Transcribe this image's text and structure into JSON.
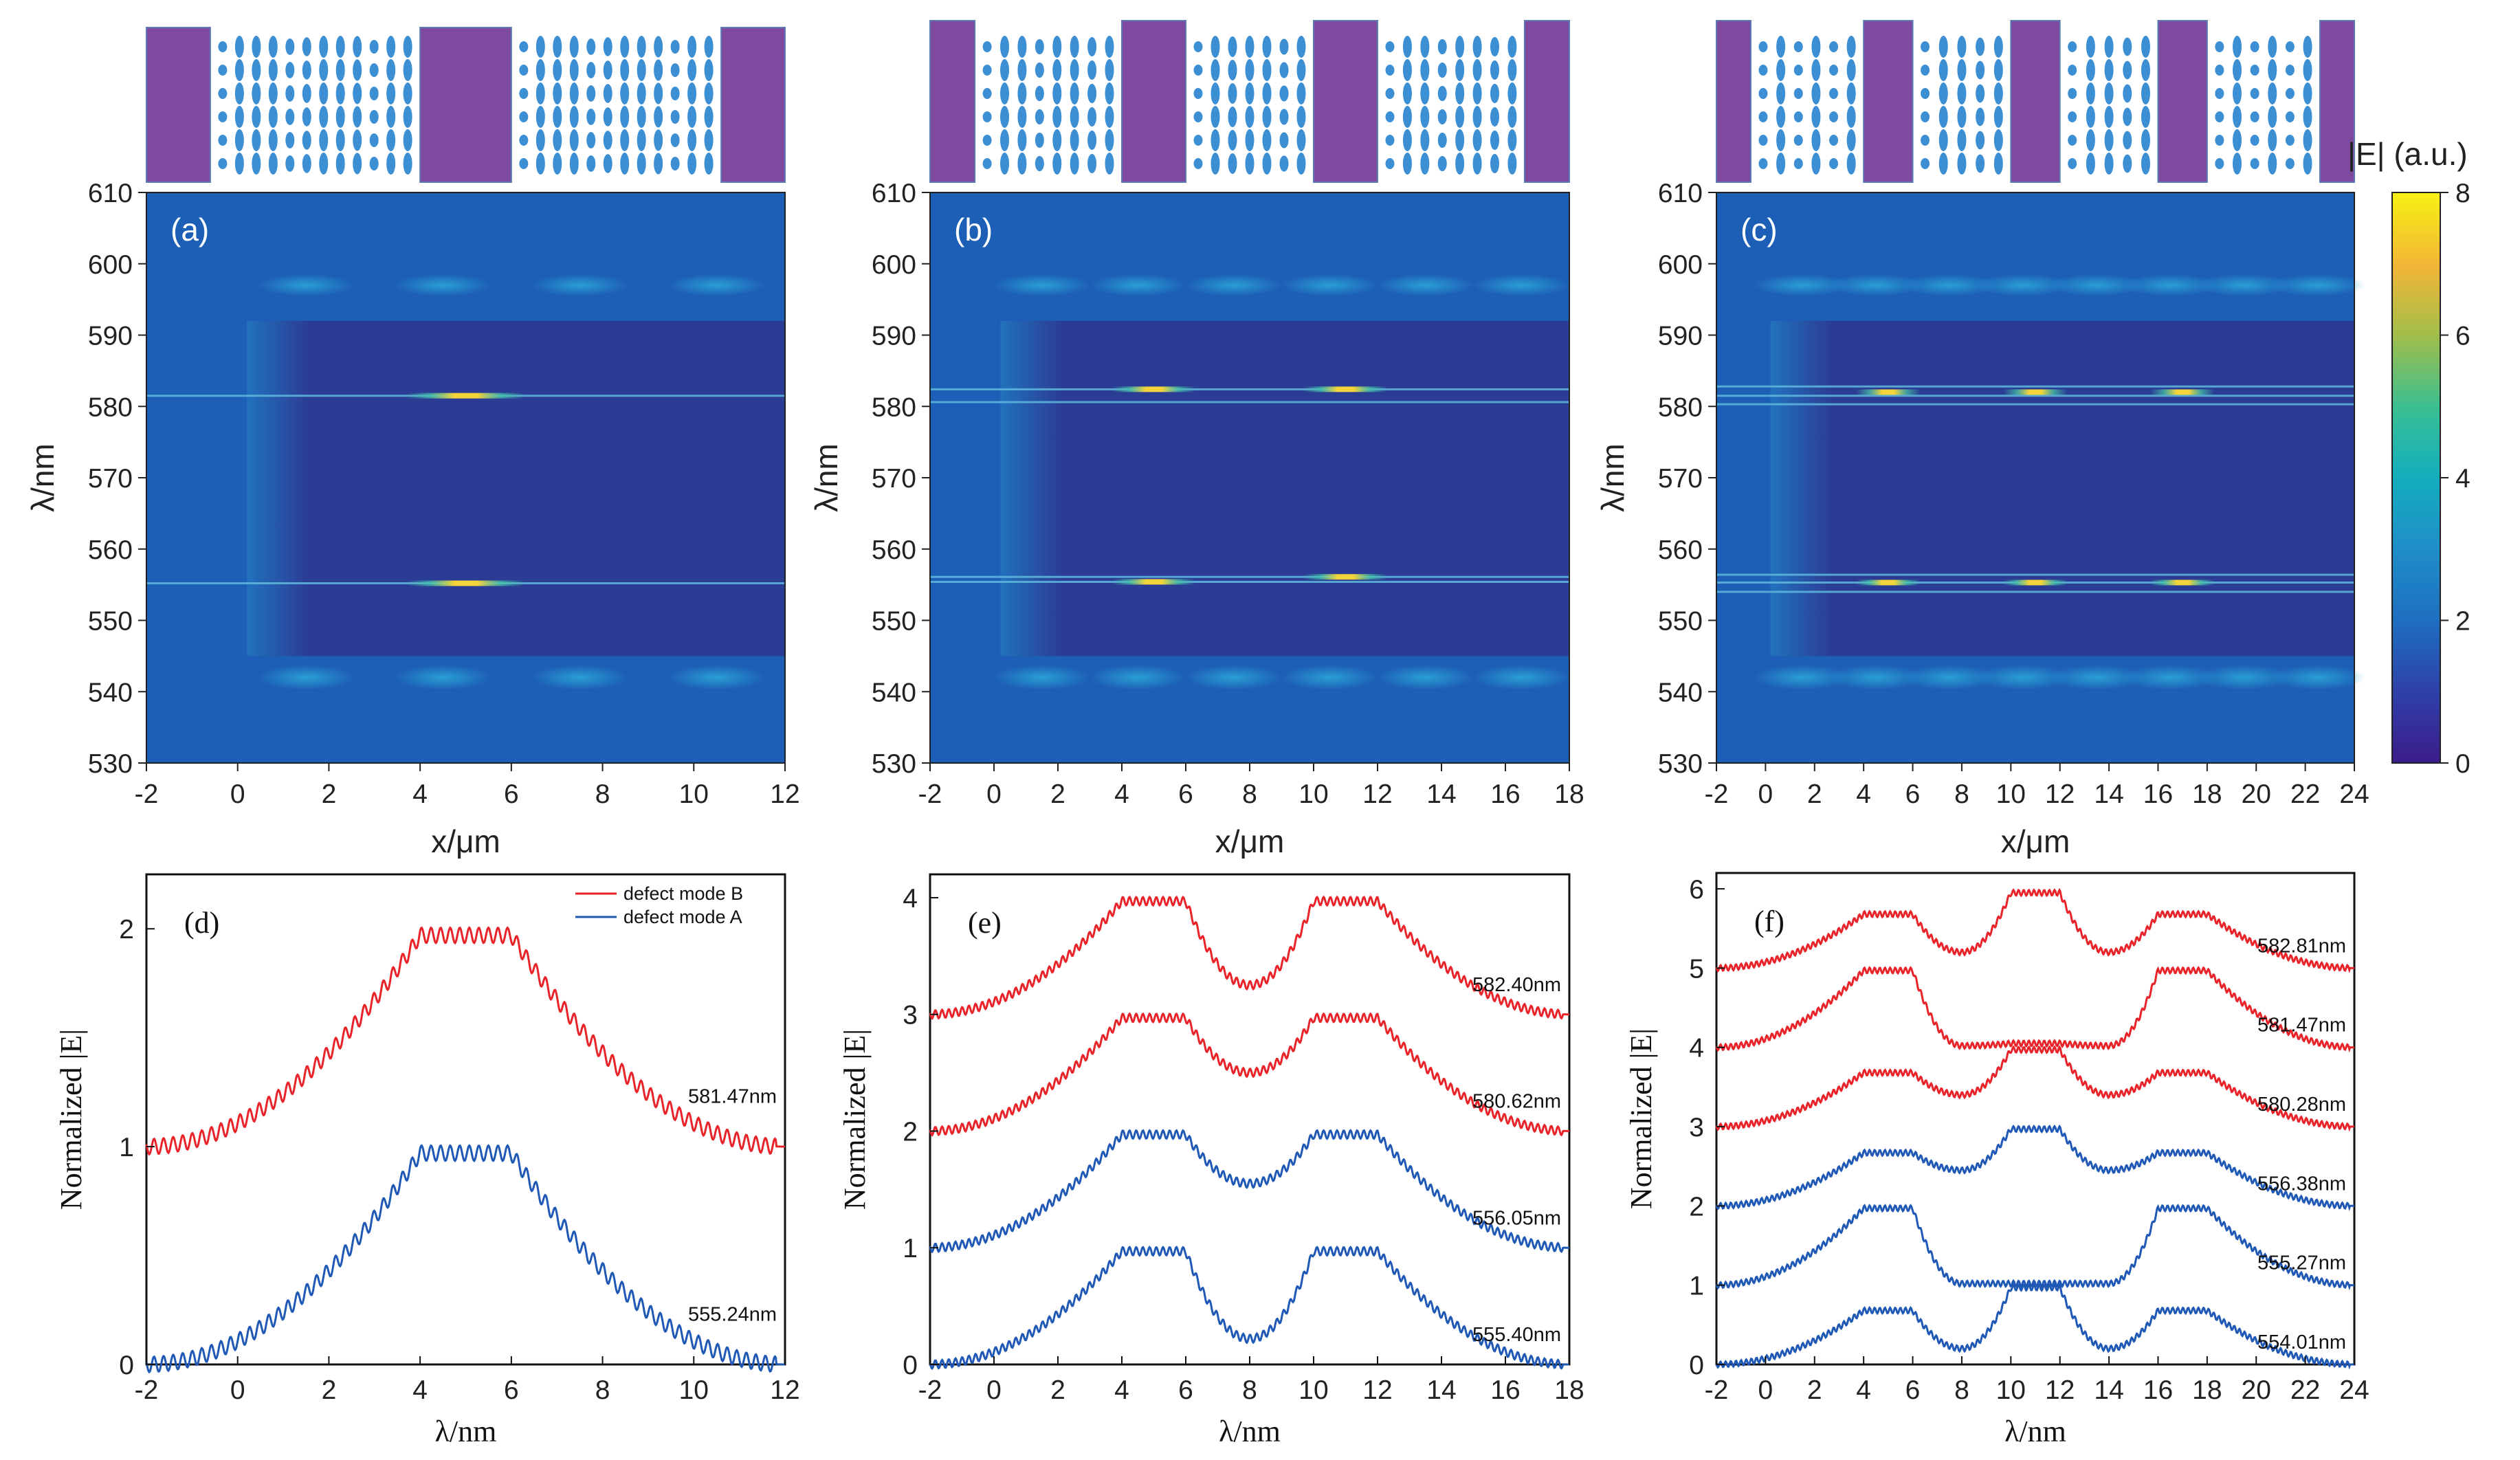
{
  "colors": {
    "mode_b": "#e8242a",
    "mode_a": "#1f58b5",
    "block": "#7d4aa0",
    "ellipse": "#3d8fd4",
    "axis": "#222222"
  },
  "colorbar": {
    "title": "|E| (a.u.)",
    "ticks": [
      "0",
      "2",
      "4",
      "6",
      "8"
    ],
    "range": [
      0,
      8
    ]
  },
  "chart_data": [
    {
      "type": "heatmap",
      "panel_label": "(a)",
      "xlabel": "x/μm",
      "ylabel": "λ/nm",
      "xlim": [
        -2,
        12
      ],
      "ylim": [
        530,
        610
      ],
      "x_ticks": [
        "-2",
        "0",
        "2",
        "4",
        "6",
        "8",
        "10",
        "12"
      ],
      "y_ticks": [
        "530",
        "540",
        "550",
        "560",
        "570",
        "580",
        "590",
        "600",
        "610"
      ],
      "mirror_regions": [
        [
          -2,
          -0.6
        ],
        [
          4,
          6
        ],
        [
          10.6,
          12
        ]
      ],
      "defect_bands": [
        581.5,
        555.2
      ],
      "hot_spots": [
        {
          "x": 5,
          "wavelength": 581.5,
          "E": 7.5
        },
        {
          "x": 5,
          "wavelength": 555.2,
          "E": 6.8
        }
      ]
    },
    {
      "type": "heatmap",
      "panel_label": "(b)",
      "xlabel": "x/μm",
      "ylabel": "λ/nm",
      "xlim": [
        -2,
        18
      ],
      "ylim": [
        530,
        610
      ],
      "x_ticks": [
        "-2",
        "0",
        "2",
        "4",
        "6",
        "8",
        "10",
        "12",
        "14",
        "16",
        "18"
      ],
      "y_ticks": [
        "530",
        "540",
        "550",
        "560",
        "570",
        "580",
        "590",
        "600",
        "610"
      ],
      "mirror_regions": [
        [
          -2,
          -0.6
        ],
        [
          4,
          6
        ],
        [
          10,
          12
        ],
        [
          16.6,
          18
        ]
      ],
      "defect_bands": [
        582.4,
        580.6,
        556.1,
        555.4
      ],
      "hot_spots": [
        {
          "x": 5,
          "wavelength": 582.4,
          "E": 5.5
        },
        {
          "x": 11,
          "wavelength": 582.4,
          "E": 5.5
        },
        {
          "x": 5,
          "wavelength": 555.4,
          "E": 5
        },
        {
          "x": 11,
          "wavelength": 556.1,
          "E": 5
        }
      ]
    },
    {
      "type": "heatmap",
      "panel_label": "(c)",
      "xlabel": "x/μm",
      "ylabel": "λ/nm",
      "xlim": [
        -2,
        24
      ],
      "ylim": [
        530,
        610
      ],
      "x_ticks": [
        "-2",
        "0",
        "2",
        "4",
        "6",
        "8",
        "10",
        "12",
        "14",
        "16",
        "18",
        "20",
        "22",
        "24"
      ],
      "y_ticks": [
        "530",
        "540",
        "550",
        "560",
        "570",
        "580",
        "590",
        "600",
        "610"
      ],
      "mirror_regions": [
        [
          -2,
          -0.6
        ],
        [
          4,
          6
        ],
        [
          10,
          12
        ],
        [
          16,
          18
        ],
        [
          22.6,
          24
        ]
      ],
      "defect_bands": [
        582.8,
        581.5,
        580.3,
        556.4,
        555.3,
        554.0
      ],
      "hot_spots": [
        {
          "x": 5,
          "wavelength": 582,
          "E": 5
        },
        {
          "x": 11,
          "wavelength": 582,
          "E": 5
        },
        {
          "x": 17,
          "wavelength": 582,
          "E": 5
        },
        {
          "x": 5,
          "wavelength": 555.3,
          "E": 5
        },
        {
          "x": 11,
          "wavelength": 555.3,
          "E": 5
        },
        {
          "x": 17,
          "wavelength": 555.3,
          "E": 5
        }
      ]
    },
    {
      "type": "line",
      "panel_label": "(d)",
      "xlabel": "λ/nm",
      "ylabel": "Normalized |E|",
      "xlim": [
        -2,
        12
      ],
      "ylim": [
        0,
        2.25
      ],
      "x_ticks": [
        "-2",
        "0",
        "2",
        "4",
        "6",
        "8",
        "10",
        "12"
      ],
      "y_ticks": [
        "0",
        "1",
        "2"
      ],
      "legend": [
        "defect mode B",
        "defect mode A"
      ],
      "plateaus": [
        [
          4,
          6
        ]
      ],
      "series": [
        {
          "name": "defect mode B",
          "label": "581.47nm",
          "color": "red",
          "offset": 1,
          "dips": []
        },
        {
          "name": "defect mode A",
          "label": "555.24nm",
          "color": "blue",
          "offset": 0,
          "dips": []
        }
      ]
    },
    {
      "type": "line",
      "panel_label": "(e)",
      "xlabel": "λ/nm",
      "ylabel": "Normalized |E|",
      "xlim": [
        -2,
        18
      ],
      "ylim": [
        0,
        4.2
      ],
      "x_ticks": [
        "-2",
        "0",
        "2",
        "4",
        "6",
        "8",
        "10",
        "12",
        "14",
        "16",
        "18"
      ],
      "y_ticks": [
        "0",
        "1",
        "2",
        "3",
        "4"
      ],
      "plateaus": [
        [
          4,
          6
        ],
        [
          10,
          12
        ]
      ],
      "series": [
        {
          "label": "582.40nm",
          "color": "red",
          "offset": 3,
          "dips": [
            0.25
          ]
        },
        {
          "label": "580.62nm",
          "color": "red",
          "offset": 2,
          "dips": [
            0.5
          ]
        },
        {
          "label": "556.05nm",
          "color": "blue",
          "offset": 1,
          "dips": [
            0.55
          ]
        },
        {
          "label": "555.40nm",
          "color": "blue",
          "offset": 0,
          "dips": [
            0.22
          ]
        }
      ]
    },
    {
      "type": "line",
      "panel_label": "(f)",
      "xlabel": "λ/nm",
      "ylabel": "Normalized |E|",
      "xlim": [
        -2,
        24
      ],
      "ylim": [
        0,
        6.2
      ],
      "x_ticks": [
        "-2",
        "0",
        "2",
        "4",
        "6",
        "8",
        "10",
        "12",
        "14",
        "16",
        "18",
        "20",
        "22",
        "24"
      ],
      "y_ticks": [
        "0",
        "1",
        "2",
        "3",
        "4",
        "5",
        "6"
      ],
      "plateaus": [
        [
          4,
          6
        ],
        [
          10,
          12
        ],
        [
          16,
          18
        ]
      ],
      "series": [
        {
          "label": "582.81nm",
          "color": "red",
          "offset": 5,
          "peaks": [
            0.68,
            0.95,
            0.68
          ],
          "dips": [
            0.2,
            0.2
          ]
        },
        {
          "label": "581.47nm",
          "color": "red",
          "offset": 4,
          "peaks": [
            0.97,
            0.05,
            0.97
          ],
          "dips": [
            0.02,
            0.02
          ]
        },
        {
          "label": "580.28nm",
          "color": "red",
          "offset": 3,
          "peaks": [
            0.68,
            0.97,
            0.68
          ],
          "dips": [
            0.4,
            0.4
          ]
        },
        {
          "label": "556.38nm",
          "color": "blue",
          "offset": 2,
          "peaks": [
            0.67,
            0.97,
            0.67
          ],
          "dips": [
            0.45,
            0.45
          ]
        },
        {
          "label": "555.27nm",
          "color": "blue",
          "offset": 1,
          "peaks": [
            0.97,
            0.02,
            0.97
          ],
          "dips": [
            0.02,
            0.02
          ]
        },
        {
          "label": "554.01nm",
          "color": "blue",
          "offset": 0,
          "peaks": [
            0.68,
            0.97,
            0.68
          ],
          "dips": [
            0.2,
            0.2
          ]
        }
      ]
    }
  ]
}
